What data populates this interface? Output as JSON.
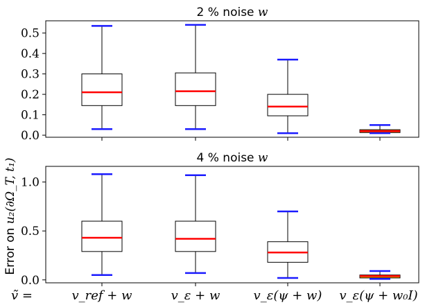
{
  "chart_data": [
    {
      "type": "box",
      "title": "2 % noise w",
      "title_text": "2 % noise ",
      "title_math": "w",
      "ylim": [
        -0.01,
        0.56
      ],
      "yticks": [
        0.0,
        0.1,
        0.2,
        0.3,
        0.4,
        0.5
      ],
      "ytick_labels": [
        "0.0",
        "0.1",
        "0.2",
        "0.3",
        "0.4",
        "0.5"
      ],
      "boxes": [
        {
          "whislo": 0.03,
          "q1": 0.145,
          "med": 0.21,
          "q3": 0.3,
          "whishi": 0.535
        },
        {
          "whislo": 0.03,
          "q1": 0.145,
          "med": 0.215,
          "q3": 0.305,
          "whishi": 0.54
        },
        {
          "whislo": 0.01,
          "q1": 0.095,
          "med": 0.14,
          "q3": 0.2,
          "whishi": 0.37
        },
        {
          "whislo": 0.01,
          "q1": 0.013,
          "med": 0.02,
          "q3": 0.027,
          "whishi": 0.05
        }
      ]
    },
    {
      "type": "box",
      "title": "4 % noise w",
      "title_text": "4 % noise ",
      "title_math": "w",
      "ylim": [
        -0.03,
        1.16
      ],
      "yticks": [
        0.0,
        0.5,
        1.0
      ],
      "ytick_labels": [
        "0.0",
        "0.5",
        "1.0"
      ],
      "boxes": [
        {
          "whislo": 0.05,
          "q1": 0.29,
          "med": 0.43,
          "q3": 0.6,
          "whishi": 1.08
        },
        {
          "whislo": 0.07,
          "q1": 0.29,
          "med": 0.42,
          "q3": 0.6,
          "whishi": 1.07
        },
        {
          "whislo": 0.02,
          "q1": 0.18,
          "med": 0.28,
          "q3": 0.39,
          "whishi": 0.7
        },
        {
          "whislo": 0.01,
          "q1": 0.02,
          "med": 0.04,
          "q3": 0.05,
          "whishi": 0.09
        }
      ]
    }
  ],
  "categories": [
    "v_ref + w",
    "v_ε + w",
    "v_ε(ψ + w)",
    "v_ε(ψ + w₀I)"
  ],
  "ylabel_text": "Error on ",
  "ylabel_math": "u₂(∂Ω_T, t₁)",
  "xlabel_prefix": "ṽ =",
  "colors": {
    "median": "#ff0000",
    "whisker_cap": "#1a1aff",
    "box_edge": "#000000",
    "last_box_fill": "#ffa500"
  }
}
